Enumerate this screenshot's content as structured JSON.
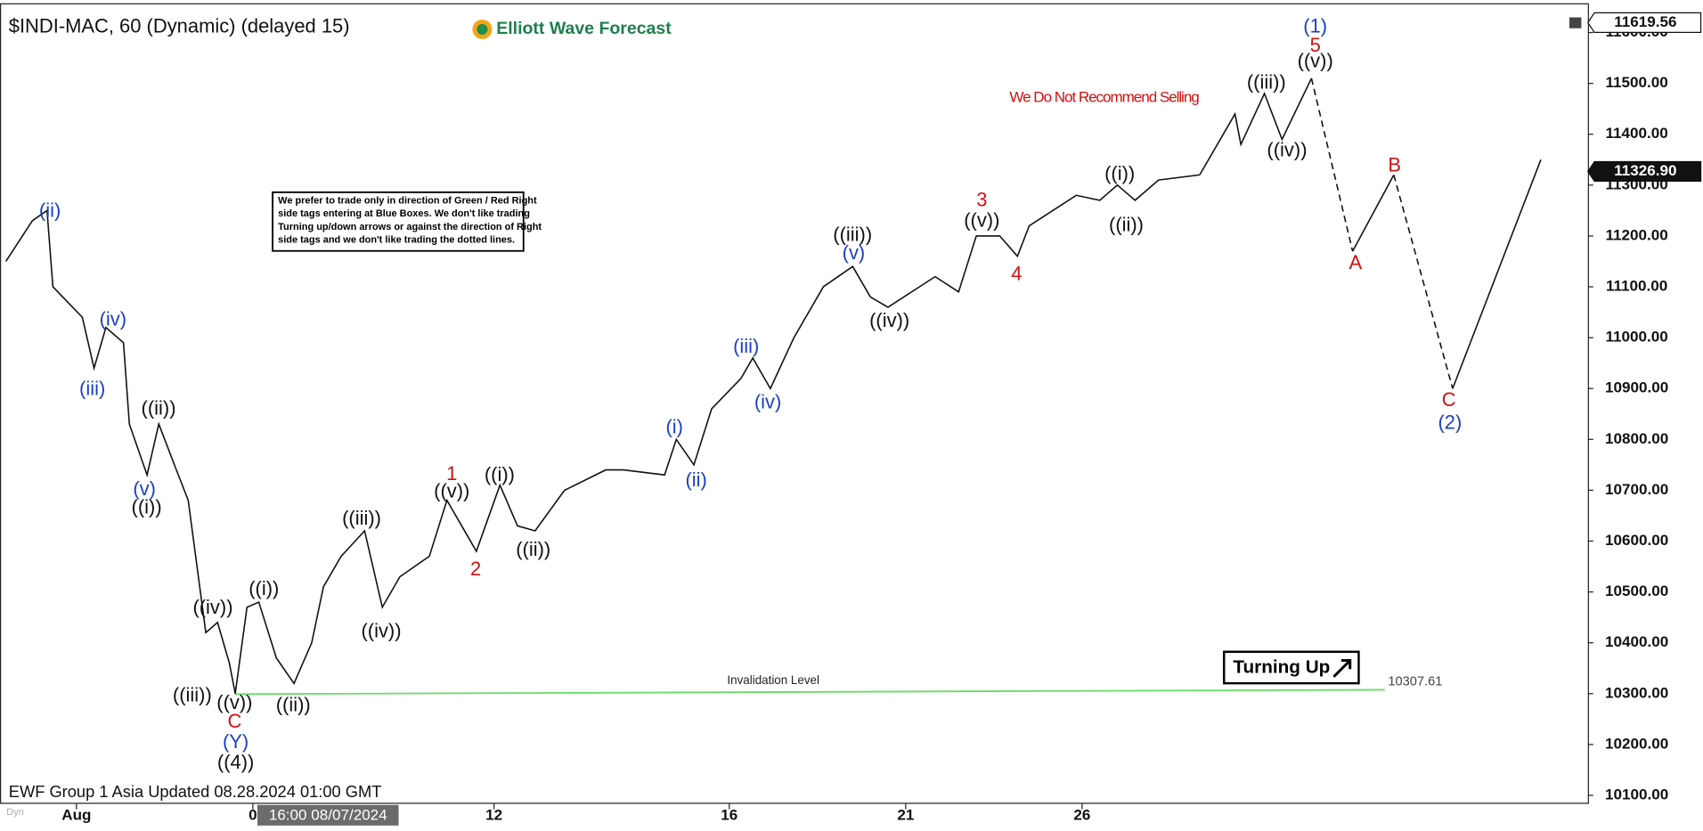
{
  "chart_data": {
    "type": "line",
    "title": "$INDI-MAC, 60 (Dynamic) (delayed 15)",
    "logo": "Elliott Wave Forecast",
    "footer": "EWF Group 1 Asia Updated 08.28.2024 01:00 GMT",
    "corner_tag": "Dyn",
    "crosshair_label": "16:00 08/07/2024",
    "note": [
      "We prefer to trade only in direction of Green / Red Right",
      "side tags entering at Blue Boxes. We don't like trading",
      "Turning up/down arrows or against the direction of Right",
      "side tags and we don't like trading the dotted lines."
    ],
    "badge": "Turning Up",
    "invalidation": {
      "label": "Invalidation Level",
      "value": 10307.61,
      "value_label": "10307.61",
      "color": "#66dd66"
    },
    "price_tags": [
      {
        "value": 11619.56,
        "label": "11619.56"
      },
      {
        "value": 11326.9,
        "label": "11326.90"
      }
    ],
    "xlim": [
      0,
      270
    ],
    "xticks": [
      {
        "value": 13,
        "label": "Aug"
      },
      {
        "value": 43,
        "label": "0"
      },
      {
        "value": 84,
        "label": "12"
      },
      {
        "value": 124,
        "label": "16"
      },
      {
        "value": 154,
        "label": "21"
      },
      {
        "value": 184,
        "label": "26"
      }
    ],
    "ylim": [
      10079,
      11664
    ],
    "yticks": [
      {
        "value": 10100,
        "label": "10100.00"
      },
      {
        "value": 10200,
        "label": "10200.00"
      },
      {
        "value": 10300,
        "label": "10300.00"
      },
      {
        "value": 10400,
        "label": "10400.00"
      },
      {
        "value": 10500,
        "label": "10500.00"
      },
      {
        "value": 10600,
        "label": "10600.00"
      },
      {
        "value": 10700,
        "label": "10700.00"
      },
      {
        "value": 10800,
        "label": "10800.00"
      },
      {
        "value": 10900,
        "label": "10900.00"
      },
      {
        "value": 11000,
        "label": "11000.00"
      },
      {
        "value": 11100,
        "label": "11100.00"
      },
      {
        "value": 11200,
        "label": "11200.00"
      },
      {
        "value": 11300,
        "label": "11300.00"
      },
      {
        "value": 11400,
        "label": "11400.00"
      },
      {
        "value": 11500,
        "label": "11500.00"
      },
      {
        "value": 11600,
        "label": "11600.00"
      }
    ],
    "series": [
      {
        "color": "#111111",
        "dashed": false,
        "x": [
          1,
          5.5,
          8,
          9,
          14,
          16,
          18,
          21,
          22,
          25,
          27,
          30,
          32,
          35,
          37,
          39,
          40,
          42,
          44,
          47,
          50,
          53,
          55,
          58,
          62,
          65,
          68,
          73,
          76,
          78,
          81,
          85,
          88,
          91,
          96,
          103,
          106,
          113,
          115,
          118,
          121,
          126,
          128,
          131,
          135,
          140,
          145,
          148,
          151,
          159,
          163,
          166,
          170,
          173,
          175,
          183,
          187,
          190,
          193,
          197,
          204
        ],
        "values": [
          11150,
          11230,
          11250,
          11100,
          11040,
          10940,
          11020,
          10990,
          10830,
          10730,
          10830,
          10740,
          10680,
          10420,
          10440,
          10360,
          10300,
          10470,
          10480,
          10370,
          10320,
          10400,
          10510,
          10570,
          10620,
          10470,
          10530,
          10570,
          10680,
          10640,
          10580,
          10710,
          10630,
          10620,
          10700,
          10740,
          10740,
          10730,
          10800,
          10750,
          10860,
          10920,
          10960,
          10900,
          11000,
          11100,
          11140,
          11080,
          11060,
          11120,
          11090,
          11200,
          11200,
          11160,
          11220,
          11280,
          11270,
          11300,
          11270,
          11310,
          11320
        ]
      },
      {
        "color": "#111111",
        "dashed": false,
        "x": [
          204,
          210,
          211,
          215,
          218,
          223
        ],
        "values": [
          11320,
          11440,
          11380,
          11480,
          11390,
          11510
        ]
      },
      {
        "color": "#111111",
        "dashed": true,
        "x": [
          223,
          230
        ],
        "values": [
          11510,
          11170
        ]
      },
      {
        "color": "#111111",
        "dashed": false,
        "x": [
          230,
          237
        ],
        "values": [
          11170,
          11320
        ]
      },
      {
        "color": "#111111",
        "dashed": true,
        "x": [
          237,
          247
        ],
        "values": [
          11320,
          10900
        ]
      },
      {
        "color": "#111111",
        "dashed": false,
        "x": [
          247,
          262
        ],
        "values": [
          10900,
          11350
        ]
      }
    ],
    "wave_labels": [
      {
        "text": "(ii)",
        "color": "#1a3fc4"
      },
      {
        "text": "(iv)",
        "color": "#1a3fc4"
      },
      {
        "text": "(iii)",
        "color": "#1a3fc4"
      },
      {
        "text": "((ii))",
        "color": "#111111"
      },
      {
        "text": "(v)",
        "color": "#1a3fc4"
      },
      {
        "text": "((i))",
        "color": "#111111"
      },
      {
        "text": "((iv))",
        "color": "#111111"
      },
      {
        "text": "((i))",
        "color": "#111111"
      },
      {
        "text": "((iii))",
        "color": "#111111"
      },
      {
        "text": "((v))",
        "color": "#111111"
      },
      {
        "text": "C",
        "color": "#d01010"
      },
      {
        "text": "(Y)",
        "color": "#1a3fc4"
      },
      {
        "text": "((4))",
        "color": "#111111"
      },
      {
        "text": "((ii))",
        "color": "#111111"
      },
      {
        "text": "((iii))",
        "color": "#111111"
      },
      {
        "text": "((iv))",
        "color": "#111111"
      },
      {
        "text": "1",
        "color": "#d01010"
      },
      {
        "text": "((v))",
        "color": "#111111"
      },
      {
        "text": "2",
        "color": "#d01010"
      },
      {
        "text": "((i))",
        "color": "#111111"
      },
      {
        "text": "((ii))",
        "color": "#111111"
      },
      {
        "text": "(i)",
        "color": "#1a3fc4"
      },
      {
        "text": "(ii)",
        "color": "#1a3fc4"
      },
      {
        "text": "(iii)",
        "color": "#1a3fc4"
      },
      {
        "text": "(iv)",
        "color": "#1a3fc4"
      },
      {
        "text": "((iii))",
        "color": "#111111"
      },
      {
        "text": "(v)",
        "color": "#1a3fc4"
      },
      {
        "text": "((iv))",
        "color": "#111111"
      },
      {
        "text": "3",
        "color": "#d01010"
      },
      {
        "text": "((v))",
        "color": "#111111"
      },
      {
        "text": "4",
        "color": "#d01010"
      },
      {
        "text": "((i))",
        "color": "#111111"
      },
      {
        "text": "((ii))",
        "color": "#111111"
      },
      {
        "text": "((iii))",
        "color": "#111111"
      },
      {
        "text": "((iv))",
        "color": "#111111"
      },
      {
        "text": "(1)",
        "color": "#1a3fc4"
      },
      {
        "text": "5",
        "color": "#d01010"
      },
      {
        "text": "((v))",
        "color": "#111111"
      },
      {
        "text": "A",
        "color": "#d01010"
      },
      {
        "text": "B",
        "color": "#d01010"
      },
      {
        "text": "C",
        "color": "#d01010"
      },
      {
        "text": "(2)",
        "color": "#1a3fc4"
      },
      {
        "text": "We Do Not Recommend Selling",
        "color": "#d01010"
      }
    ]
  }
}
